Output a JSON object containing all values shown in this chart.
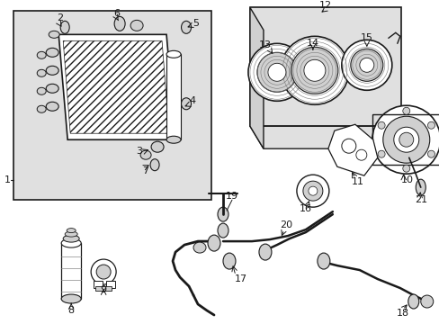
{
  "bg_color": "#ffffff",
  "fg_color": "#1a1a1a",
  "gray_bg": "#e0e0e0",
  "fig_width": 4.89,
  "fig_height": 3.6,
  "dpi": 100
}
